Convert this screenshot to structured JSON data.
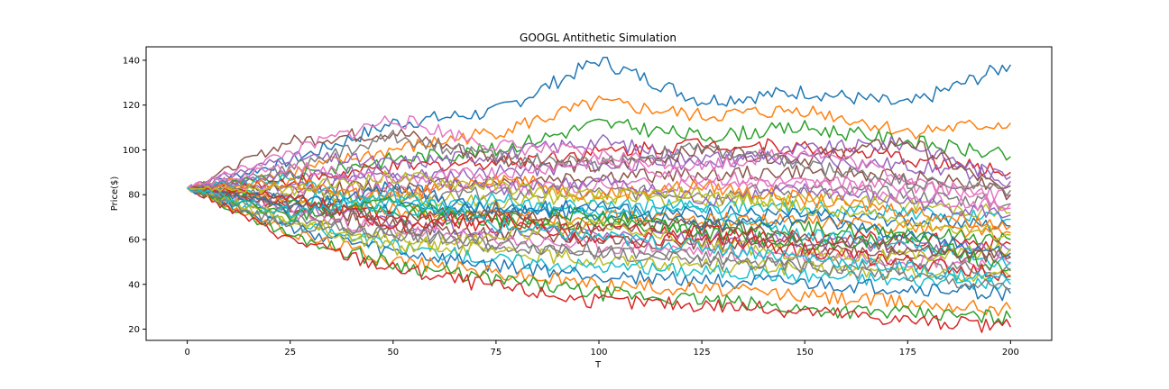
{
  "chart_data": {
    "type": "line",
    "title": "GOOGL Antithetic Simulation",
    "xlabel": "T",
    "ylabel": "Price($)",
    "xlim": [
      -10,
      210
    ],
    "ylim": [
      15,
      146
    ],
    "xticks": [
      0,
      25,
      50,
      75,
      100,
      125,
      150,
      175,
      200
    ],
    "yticks": [
      20,
      40,
      60,
      80,
      100,
      120,
      140
    ],
    "grid": false,
    "legend": "none",
    "palette": [
      "#1f77b4",
      "#ff7f0e",
      "#2ca02c",
      "#d62728",
      "#9467bd",
      "#8c564b",
      "#e377c2",
      "#7f7f7f",
      "#bcbd22",
      "#17becf"
    ],
    "series": [
      {
        "x": [
          0,
          25,
          50,
          75,
          100,
          125,
          150,
          175,
          200
        ],
        "values": [
          83,
          95,
          112,
          117,
          140,
          122,
          126,
          120,
          138
        ]
      },
      {
        "x": [
          0,
          25,
          50,
          75,
          100,
          125,
          150,
          175,
          200
        ],
        "values": [
          83,
          90,
          100,
          108,
          121,
          115,
          118,
          108,
          112
        ]
      },
      {
        "x": [
          0,
          25,
          50,
          75,
          100,
          125,
          150,
          175,
          200
        ],
        "values": [
          83,
          88,
          96,
          100,
          112,
          106,
          110,
          104,
          97
        ]
      },
      {
        "x": [
          0,
          25,
          50,
          75,
          100,
          125,
          150,
          175,
          200
        ],
        "values": [
          83,
          86,
          92,
          95,
          99,
          103,
          101,
          96,
          90
        ]
      },
      {
        "x": [
          0,
          25,
          50,
          75,
          100,
          125,
          150,
          175,
          200
        ],
        "values": [
          83,
          84,
          88,
          90,
          93,
          95,
          96,
          93,
          88
        ]
      },
      {
        "x": [
          0,
          25,
          50,
          75,
          100,
          125,
          150,
          175,
          200
        ],
        "values": [
          83,
          82,
          84,
          86,
          88,
          89,
          90,
          88,
          84
        ]
      },
      {
        "x": [
          0,
          25,
          50,
          75,
          100,
          125,
          150,
          175,
          200
        ],
        "values": [
          83,
          81,
          82,
          83,
          84,
          85,
          86,
          84,
          80
        ]
      },
      {
        "x": [
          0,
          25,
          50,
          75,
          100,
          125,
          150,
          175,
          200
        ],
        "values": [
          83,
          80,
          80,
          80,
          81,
          81,
          82,
          80,
          76
        ]
      },
      {
        "x": [
          0,
          25,
          50,
          75,
          100,
          125,
          150,
          175,
          200
        ],
        "values": [
          83,
          79,
          78,
          77,
          78,
          78,
          78,
          76,
          72
        ]
      },
      {
        "x": [
          0,
          25,
          50,
          75,
          100,
          125,
          150,
          175,
          200
        ],
        "values": [
          83,
          78,
          76,
          74,
          75,
          75,
          74,
          72,
          69
        ]
      },
      {
        "x": [
          0,
          25,
          50,
          75,
          100,
          125,
          150,
          175,
          200
        ],
        "values": [
          83,
          78,
          74,
          72,
          72,
          72,
          71,
          69,
          66
        ]
      },
      {
        "x": [
          0,
          25,
          50,
          75,
          100,
          125,
          150,
          175,
          200
        ],
        "values": [
          83,
          77,
          73,
          70,
          70,
          69,
          68,
          66,
          63
        ]
      },
      {
        "x": [
          0,
          25,
          50,
          75,
          100,
          125,
          150,
          175,
          200
        ],
        "values": [
          83,
          76,
          71,
          68,
          67,
          66,
          65,
          63,
          60
        ]
      },
      {
        "x": [
          0,
          25,
          50,
          75,
          100,
          125,
          150,
          175,
          200
        ],
        "values": [
          83,
          75,
          70,
          66,
          65,
          63,
          62,
          60,
          58
        ]
      },
      {
        "x": [
          0,
          25,
          50,
          75,
          100,
          125,
          150,
          175,
          200
        ],
        "values": [
          83,
          74,
          68,
          64,
          62,
          61,
          59,
          57,
          55
        ]
      },
      {
        "x": [
          0,
          25,
          50,
          75,
          100,
          125,
          150,
          175,
          200
        ],
        "values": [
          83,
          73,
          66,
          62,
          60,
          58,
          56,
          54,
          52
        ]
      },
      {
        "x": [
          0,
          25,
          50,
          75,
          100,
          125,
          150,
          175,
          200
        ],
        "values": [
          83,
          72,
          64,
          60,
          57,
          55,
          53,
          51,
          49
        ]
      },
      {
        "x": [
          0,
          25,
          50,
          75,
          100,
          125,
          150,
          175,
          200
        ],
        "values": [
          83,
          71,
          62,
          57,
          54,
          52,
          50,
          48,
          46
        ]
      },
      {
        "x": [
          0,
          25,
          50,
          75,
          100,
          125,
          150,
          175,
          200
        ],
        "values": [
          83,
          69,
          60,
          54,
          51,
          49,
          47,
          45,
          43
        ]
      },
      {
        "x": [
          0,
          25,
          50,
          75,
          100,
          125,
          150,
          175,
          200
        ],
        "values": [
          83,
          67,
          57,
          51,
          48,
          46,
          44,
          42,
          40
        ]
      },
      {
        "x": [
          0,
          25,
          50,
          75,
          100,
          125,
          150,
          175,
          200
        ],
        "values": [
          83,
          65,
          54,
          48,
          44,
          42,
          40,
          38,
          36
        ]
      },
      {
        "x": [
          0,
          25,
          50,
          75,
          100,
          125,
          150,
          175,
          200
        ],
        "values": [
          83,
          63,
          51,
          45,
          40,
          38,
          35,
          32,
          29
        ]
      },
      {
        "x": [
          0,
          25,
          50,
          75,
          100,
          125,
          150,
          175,
          200
        ],
        "values": [
          83,
          62,
          49,
          42,
          36,
          33,
          29,
          27,
          25
        ]
      },
      {
        "x": [
          0,
          25,
          50,
          75,
          100,
          125,
          150,
          175,
          200
        ],
        "values": [
          83,
          60,
          47,
          39,
          32,
          31,
          28,
          24,
          21
        ]
      },
      {
        "x": [
          0,
          25,
          50,
          75,
          100,
          125,
          150,
          175,
          200
        ],
        "values": [
          83,
          97,
          94,
          98,
          104,
          96,
          100,
          103,
          86
        ]
      },
      {
        "x": [
          0,
          25,
          50,
          75,
          100,
          125,
          150,
          175,
          200
        ],
        "values": [
          83,
          104,
          108,
          96,
          92,
          100,
          96,
          104,
          80
        ]
      },
      {
        "x": [
          0,
          25,
          50,
          75,
          100,
          125,
          150,
          175,
          200
        ],
        "values": [
          83,
          99,
          114,
          102,
          98,
          93,
          100,
          88,
          76
        ]
      },
      {
        "x": [
          0,
          25,
          50,
          75,
          100,
          125,
          150,
          175,
          200
        ],
        "values": [
          83,
          92,
          106,
          97,
          94,
          101,
          93,
          86,
          82
        ]
      },
      {
        "x": [
          0,
          25,
          50,
          75,
          100,
          125,
          150,
          175,
          200
        ],
        "values": [
          83,
          68,
          56,
          62,
          66,
          58,
          54,
          52,
          56
        ]
      },
      {
        "x": [
          0,
          25,
          50,
          75,
          100,
          125,
          150,
          175,
          200
        ],
        "values": [
          83,
          87,
          72,
          78,
          70,
          74,
          62,
          58,
          50
        ]
      },
      {
        "x": [
          0,
          25,
          50,
          75,
          100,
          125,
          150,
          175,
          200
        ],
        "values": [
          83,
          74,
          84,
          72,
          76,
          66,
          70,
          62,
          54
        ]
      },
      {
        "x": [
          0,
          25,
          50,
          75,
          100,
          125,
          150,
          175,
          200
        ],
        "values": [
          83,
          85,
          79,
          88,
          80,
          84,
          78,
          73,
          66
        ]
      },
      {
        "x": [
          0,
          25,
          50,
          75,
          100,
          125,
          150,
          175,
          200
        ],
        "values": [
          83,
          70,
          76,
          68,
          72,
          64,
          58,
          61,
          47
        ]
      },
      {
        "x": [
          0,
          25,
          50,
          75,
          100,
          125,
          150,
          175,
          200
        ],
        "values": [
          83,
          80,
          66,
          70,
          58,
          62,
          55,
          50,
          44
        ]
      },
      {
        "x": [
          0,
          25,
          50,
          75,
          100,
          125,
          150,
          175,
          200
        ],
        "values": [
          83,
          89,
          90,
          82,
          86,
          78,
          82,
          77,
          71
        ]
      },
      {
        "x": [
          0,
          25,
          50,
          75,
          100,
          125,
          150,
          175,
          200
        ],
        "values": [
          83,
          76,
          68,
          74,
          64,
          68,
          60,
          56,
          52
        ]
      },
      {
        "x": [
          0,
          25,
          50,
          75,
          100,
          125,
          150,
          175,
          200
        ],
        "values": [
          83,
          93,
          86,
          90,
          95,
          88,
          85,
          80,
          74
        ]
      },
      {
        "x": [
          0,
          25,
          50,
          75,
          100,
          125,
          150,
          175,
          200
        ],
        "values": [
          83,
          66,
          63,
          58,
          55,
          50,
          48,
          44,
          38
        ]
      },
      {
        "x": [
          0,
          25,
          50,
          75,
          100,
          125,
          150,
          175,
          200
        ],
        "values": [
          83,
          82,
          88,
          84,
          79,
          81,
          74,
          68,
          62
        ]
      },
      {
        "x": [
          0,
          25,
          50,
          75,
          100,
          125,
          150,
          175,
          200
        ],
        "values": [
          83,
          72,
          80,
          66,
          61,
          57,
          52,
          47,
          42
        ]
      }
    ]
  }
}
